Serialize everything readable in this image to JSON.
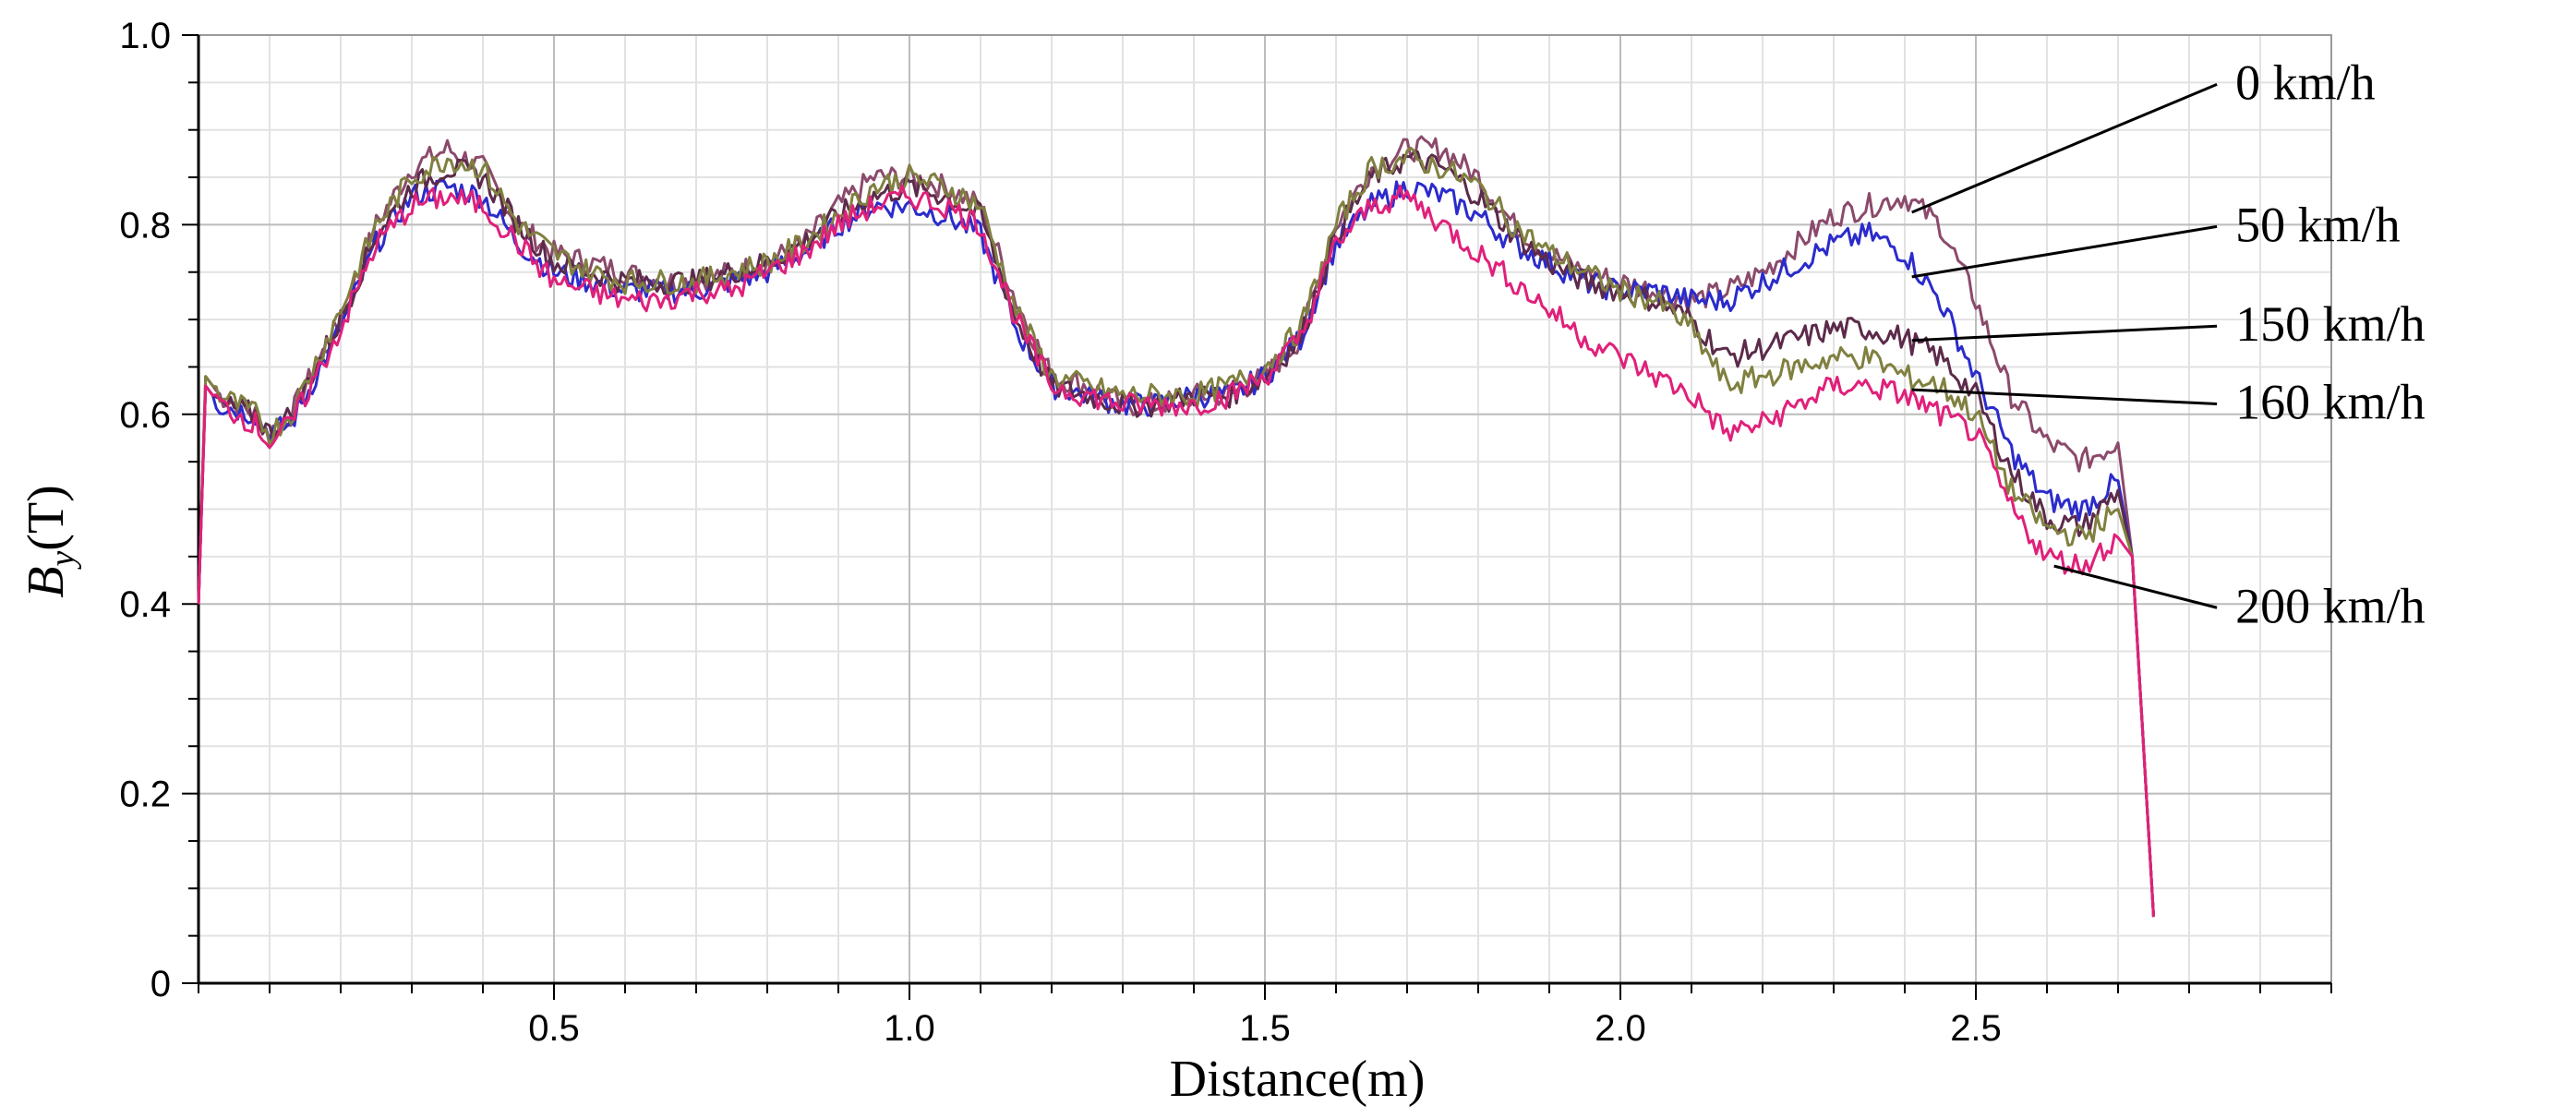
{
  "chart_data": {
    "type": "line",
    "xlabel": "Distance(m)",
    "ylabel_main": "B",
    "ylabel_sub": "y",
    "ylabel_unit": "(T)",
    "xlim": [
      0,
      3.0
    ],
    "ylim": [
      0,
      1.0
    ],
    "x_ticks": [
      0.5,
      1.0,
      1.5,
      2.0,
      2.5
    ],
    "x_tick_labels": [
      "0.5",
      "1.0",
      "1.5",
      "2.0",
      "2.5"
    ],
    "y_ticks": [
      0,
      0.2,
      0.4,
      0.6,
      0.8,
      1.0
    ],
    "y_tick_labels": [
      "0",
      "0.2",
      "0.4",
      "0.6",
      "0.8",
      "1.0"
    ],
    "grid": true,
    "series": [
      {
        "name": "0 km/h",
        "color": "#8B4A6B",
        "x": [
          0,
          0.01,
          0.03,
          0.08,
          0.1,
          0.13,
          0.2,
          0.25,
          0.3,
          0.35,
          0.4,
          0.45,
          0.5,
          0.55,
          0.6,
          0.65,
          0.7,
          0.75,
          0.8,
          0.85,
          0.9,
          0.95,
          1.0,
          1.05,
          1.1,
          1.15,
          1.2,
          1.25,
          1.3,
          1.35,
          1.4,
          1.45,
          1.5,
          1.55,
          1.6,
          1.65,
          1.7,
          1.75,
          1.8,
          1.85,
          1.9,
          1.95,
          2.0,
          2.05,
          2.1,
          2.15,
          2.2,
          2.25,
          2.3,
          2.35,
          2.4,
          2.45,
          2.5,
          2.55,
          2.6,
          2.65,
          2.7,
          2.72,
          2.75
        ],
        "y": [
          0.4,
          0.64,
          0.62,
          0.6,
          0.58,
          0.6,
          0.7,
          0.8,
          0.86,
          0.88,
          0.86,
          0.8,
          0.77,
          0.76,
          0.75,
          0.74,
          0.74,
          0.75,
          0.76,
          0.78,
          0.82,
          0.85,
          0.85,
          0.84,
          0.82,
          0.72,
          0.64,
          0.63,
          0.61,
          0.61,
          0.62,
          0.62,
          0.64,
          0.68,
          0.8,
          0.86,
          0.88,
          0.88,
          0.85,
          0.8,
          0.77,
          0.75,
          0.74,
          0.73,
          0.72,
          0.73,
          0.75,
          0.78,
          0.81,
          0.82,
          0.83,
          0.8,
          0.72,
          0.62,
          0.57,
          0.55,
          0.57,
          0.45,
          0.07
        ]
      },
      {
        "name": "50 km/h",
        "color": "#2B2BCC",
        "x": [
          0,
          0.01,
          0.03,
          0.08,
          0.1,
          0.13,
          0.2,
          0.25,
          0.3,
          0.35,
          0.4,
          0.45,
          0.5,
          0.55,
          0.6,
          0.65,
          0.7,
          0.75,
          0.8,
          0.85,
          0.9,
          0.95,
          1.0,
          1.05,
          1.1,
          1.15,
          1.2,
          1.25,
          1.3,
          1.35,
          1.4,
          1.45,
          1.5,
          1.55,
          1.6,
          1.65,
          1.7,
          1.75,
          1.8,
          1.85,
          1.9,
          1.95,
          2.0,
          2.05,
          2.1,
          2.15,
          2.2,
          2.25,
          2.3,
          2.35,
          2.4,
          2.45,
          2.5,
          2.55,
          2.6,
          2.65,
          2.7,
          2.72,
          2.75
        ],
        "y": [
          0.4,
          0.63,
          0.61,
          0.6,
          0.58,
          0.59,
          0.69,
          0.78,
          0.83,
          0.84,
          0.83,
          0.78,
          0.75,
          0.74,
          0.73,
          0.73,
          0.73,
          0.74,
          0.75,
          0.77,
          0.8,
          0.82,
          0.82,
          0.81,
          0.79,
          0.69,
          0.63,
          0.62,
          0.61,
          0.61,
          0.62,
          0.62,
          0.64,
          0.68,
          0.78,
          0.82,
          0.84,
          0.83,
          0.81,
          0.78,
          0.76,
          0.74,
          0.73,
          0.73,
          0.72,
          0.72,
          0.74,
          0.76,
          0.78,
          0.79,
          0.77,
          0.72,
          0.64,
          0.56,
          0.51,
          0.5,
          0.53,
          0.45,
          0.07
        ]
      },
      {
        "name": "150 km/h",
        "color": "#5C2A4A",
        "x": [
          0,
          0.01,
          0.03,
          0.08,
          0.1,
          0.13,
          0.2,
          0.25,
          0.3,
          0.35,
          0.4,
          0.45,
          0.5,
          0.55,
          0.6,
          0.65,
          0.7,
          0.75,
          0.8,
          0.85,
          0.9,
          0.95,
          1.0,
          1.05,
          1.1,
          1.15,
          1.2,
          1.25,
          1.3,
          1.35,
          1.4,
          1.45,
          1.5,
          1.55,
          1.6,
          1.65,
          1.7,
          1.75,
          1.8,
          1.85,
          1.9,
          1.95,
          2.0,
          2.05,
          2.1,
          2.15,
          2.2,
          2.25,
          2.3,
          2.35,
          2.4,
          2.45,
          2.5,
          2.55,
          2.6,
          2.65,
          2.7,
          2.72,
          2.75
        ],
        "y": [
          0.4,
          0.63,
          0.61,
          0.6,
          0.58,
          0.6,
          0.7,
          0.79,
          0.84,
          0.86,
          0.85,
          0.8,
          0.76,
          0.75,
          0.74,
          0.74,
          0.74,
          0.75,
          0.76,
          0.78,
          0.81,
          0.83,
          0.84,
          0.83,
          0.81,
          0.7,
          0.63,
          0.62,
          0.61,
          0.61,
          0.62,
          0.62,
          0.64,
          0.68,
          0.79,
          0.85,
          0.87,
          0.86,
          0.83,
          0.79,
          0.76,
          0.74,
          0.73,
          0.72,
          0.7,
          0.66,
          0.67,
          0.68,
          0.69,
          0.69,
          0.68,
          0.66,
          0.62,
          0.54,
          0.49,
          0.48,
          0.52,
          0.45,
          0.07
        ]
      },
      {
        "name": "160 km/h",
        "color": "#808040",
        "x": [
          0,
          0.01,
          0.03,
          0.08,
          0.1,
          0.13,
          0.2,
          0.25,
          0.3,
          0.35,
          0.4,
          0.45,
          0.5,
          0.55,
          0.6,
          0.65,
          0.7,
          0.75,
          0.8,
          0.85,
          0.9,
          0.95,
          1.0,
          1.05,
          1.1,
          1.15,
          1.2,
          1.25,
          1.3,
          1.35,
          1.4,
          1.45,
          1.5,
          1.55,
          1.6,
          1.65,
          1.7,
          1.75,
          1.8,
          1.85,
          1.9,
          1.95,
          2.0,
          2.05,
          2.1,
          2.15,
          2.2,
          2.25,
          2.3,
          2.35,
          2.4,
          2.45,
          2.5,
          2.55,
          2.6,
          2.65,
          2.7,
          2.72,
          2.75
        ],
        "y": [
          0.4,
          0.64,
          0.62,
          0.6,
          0.58,
          0.6,
          0.71,
          0.8,
          0.85,
          0.87,
          0.86,
          0.8,
          0.77,
          0.75,
          0.74,
          0.74,
          0.74,
          0.75,
          0.76,
          0.78,
          0.81,
          0.84,
          0.85,
          0.84,
          0.82,
          0.71,
          0.64,
          0.63,
          0.62,
          0.62,
          0.62,
          0.63,
          0.65,
          0.69,
          0.8,
          0.86,
          0.87,
          0.86,
          0.84,
          0.8,
          0.77,
          0.75,
          0.73,
          0.72,
          0.69,
          0.63,
          0.64,
          0.65,
          0.66,
          0.66,
          0.64,
          0.63,
          0.6,
          0.52,
          0.48,
          0.47,
          0.5,
          0.45,
          0.07
        ]
      },
      {
        "name": "200 km/h",
        "color": "#E0207A",
        "x": [
          0,
          0.01,
          0.03,
          0.08,
          0.1,
          0.13,
          0.2,
          0.25,
          0.3,
          0.35,
          0.4,
          0.45,
          0.5,
          0.55,
          0.6,
          0.65,
          0.7,
          0.75,
          0.8,
          0.85,
          0.9,
          0.95,
          1.0,
          1.05,
          1.1,
          1.15,
          1.2,
          1.25,
          1.3,
          1.35,
          1.4,
          1.45,
          1.5,
          1.55,
          1.6,
          1.65,
          1.7,
          1.75,
          1.8,
          1.85,
          1.9,
          1.95,
          2.0,
          2.05,
          2.1,
          2.15,
          2.2,
          2.25,
          2.3,
          2.35,
          2.4,
          2.45,
          2.5,
          2.55,
          2.6,
          2.65,
          2.7,
          2.72,
          2.75
        ],
        "y": [
          0.4,
          0.63,
          0.61,
          0.59,
          0.57,
          0.59,
          0.69,
          0.78,
          0.82,
          0.83,
          0.82,
          0.78,
          0.74,
          0.73,
          0.72,
          0.72,
          0.73,
          0.73,
          0.75,
          0.77,
          0.8,
          0.82,
          0.83,
          0.82,
          0.8,
          0.7,
          0.63,
          0.62,
          0.61,
          0.61,
          0.61,
          0.62,
          0.64,
          0.68,
          0.78,
          0.82,
          0.83,
          0.8,
          0.77,
          0.74,
          0.71,
          0.68,
          0.66,
          0.64,
          0.62,
          0.58,
          0.59,
          0.61,
          0.63,
          0.63,
          0.62,
          0.6,
          0.58,
          0.5,
          0.45,
          0.44,
          0.47,
          0.45,
          0.07
        ]
      }
    ],
    "annotations": [
      {
        "label": "0 km/h",
        "point": [
          2.41,
          0.813
        ],
        "label_pos": [
          2.93,
          0.95
        ]
      },
      {
        "label": "50 km/h",
        "point": [
          2.41,
          0.745
        ],
        "label_pos": [
          2.93,
          0.8
        ]
      },
      {
        "label": "150 km/h",
        "point": [
          2.41,
          0.678
        ],
        "label_pos": [
          2.93,
          0.695
        ]
      },
      {
        "label": "160 km/h",
        "point": [
          2.41,
          0.626
        ],
        "label_pos": [
          2.93,
          0.613
        ]
      },
      {
        "label": "200 km/h",
        "point": [
          2.61,
          0.44
        ],
        "label_pos": [
          2.93,
          0.398
        ]
      }
    ]
  }
}
